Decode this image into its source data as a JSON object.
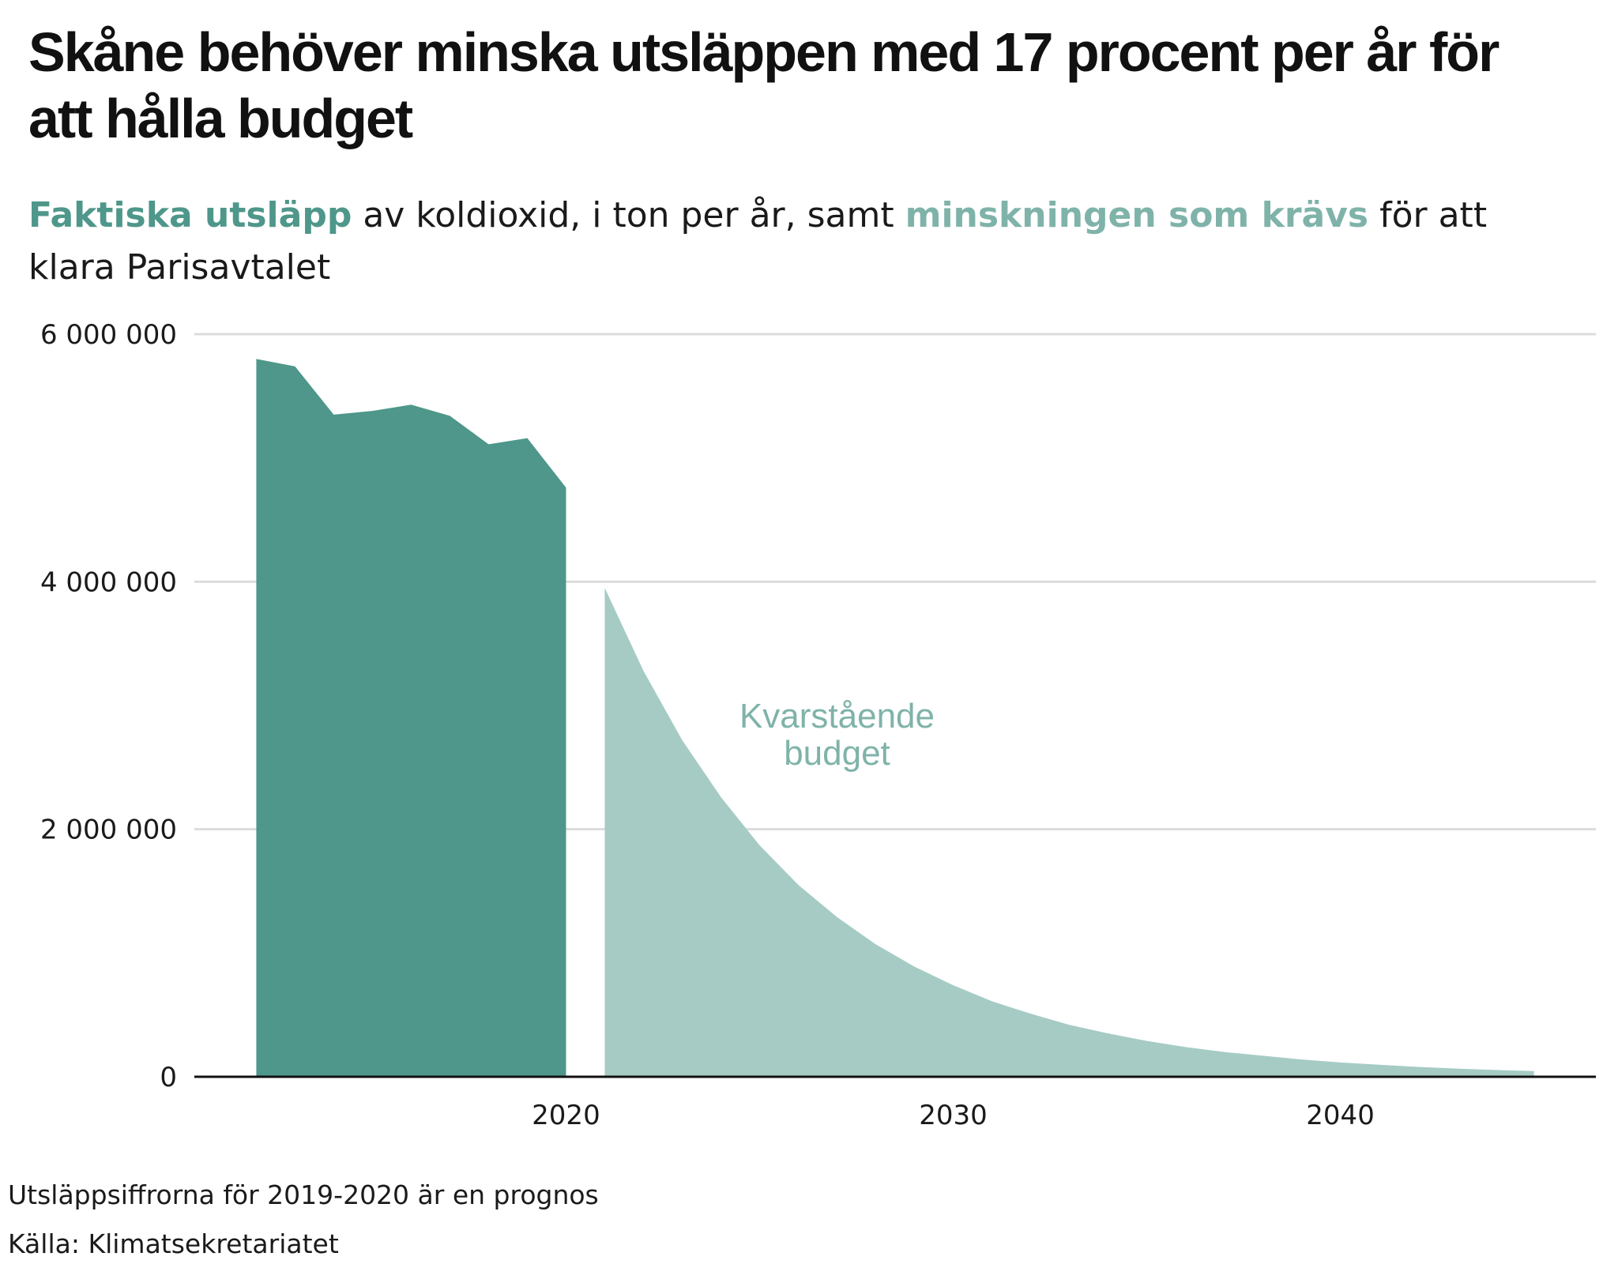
{
  "title": "Skåne behöver minska utsläppen med 17 procent per år för att hålla budget",
  "subtitle": {
    "highlight_actual": "Faktiska utsläpp",
    "part1": " av koldioxid, i ton per år, samt ",
    "highlight_required": "minskningen som krävs",
    "part2": " för att klara Parisavtalet"
  },
  "notes": {
    "forecast": "Utsläppsiffrorna för 2019-2020 är en prognos",
    "source": "Källa: Klimatsekretariatet"
  },
  "colors": {
    "actual": "#4e978a",
    "required": "#a6cbc5",
    "annotation": "#7fb3a9",
    "grid": "#dcdcdc",
    "axis": "#111111"
  },
  "chart_data": {
    "type": "area",
    "xlim": [
      2010.4,
      2046.6
    ],
    "ylim": [
      0,
      6000000
    ],
    "grid": "horizontal",
    "y_ticks": [
      {
        "value": 0,
        "label": "0"
      },
      {
        "value": 2000000,
        "label": "2 000 000"
      },
      {
        "value": 4000000,
        "label": "4 000 000"
      },
      {
        "value": 6000000,
        "label": "6 000 000"
      }
    ],
    "x_ticks": [
      {
        "value": 2020,
        "label": "2020"
      },
      {
        "value": 2030,
        "label": "2030"
      },
      {
        "value": 2040,
        "label": "2040"
      }
    ],
    "series": [
      {
        "name": "Faktiska utsläpp",
        "x": [
          2012,
          2013,
          2014,
          2015,
          2016,
          2017,
          2018,
          2019,
          2020
        ],
        "values": [
          5800000,
          5740000,
          5350000,
          5380000,
          5430000,
          5340000,
          5110000,
          5160000,
          4760000
        ]
      },
      {
        "name": "minskningen som krävs",
        "x": [
          2021,
          2022,
          2023,
          2024,
          2025,
          2026,
          2027,
          2028,
          2029,
          2030,
          2031,
          2032,
          2033,
          2034,
          2035,
          2036,
          2037,
          2038,
          2039,
          2040,
          2041,
          2042,
          2043,
          2044,
          2045
        ],
        "values": [
          3950000,
          3280000,
          2720000,
          2260000,
          1870000,
          1550000,
          1290000,
          1070000,
          890000,
          740000,
          610000,
          510000,
          420000,
          350000,
          290000,
          240000,
          200000,
          170000,
          140000,
          116000,
          97000,
          80000,
          66000,
          55000,
          46000
        ]
      }
    ],
    "annotations": [
      {
        "text": "Kvarstående",
        "x": 2027,
        "y": 2820000
      },
      {
        "text": "budget",
        "x": 2027,
        "y": 2520000
      }
    ]
  }
}
